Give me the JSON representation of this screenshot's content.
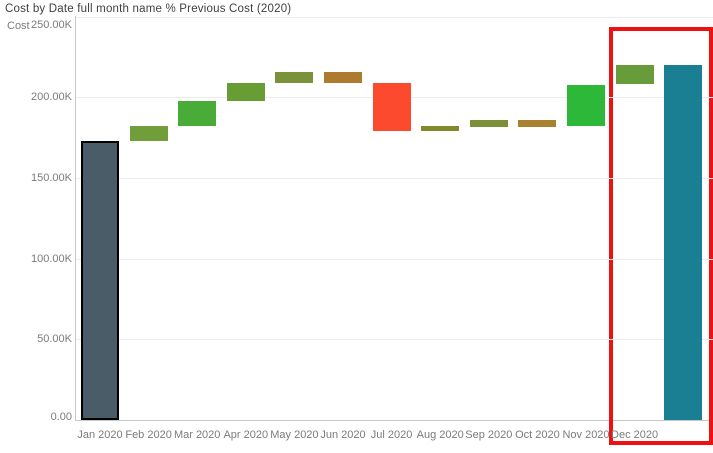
{
  "title": "Cost by Date full month name % Previous Cost (2020)",
  "chart_data": {
    "type": "waterfall",
    "title": "Cost by Date full month name % Previous Cost (2020)",
    "ylabel": "Cost",
    "unit": "K",
    "ylim": [
      0,
      250
    ],
    "grid": true,
    "legend": "none",
    "y_ticks": [
      {
        "value": 0,
        "label": "0.00"
      },
      {
        "value": 50,
        "label": "50.00K"
      },
      {
        "value": 100,
        "label": "100.00K"
      },
      {
        "value": 150,
        "label": "150.00K"
      },
      {
        "value": 200,
        "label": "200.00K"
      },
      {
        "value": 250,
        "label": "250.00K"
      }
    ],
    "categories": [
      "Jan 2020",
      "Feb 2020",
      "Mar 2020",
      "Apr 2020",
      "May 2020",
      "Jun 2020",
      "Jul 2020",
      "Aug 2020",
      "Sep 2020",
      "Oct 2020",
      "Nov 2020",
      "Dec 2020"
    ],
    "cumulative_thousands": [
      173,
      182,
      198,
      209,
      216,
      209,
      179,
      182,
      186,
      182,
      208,
      220
    ],
    "total_thousands": 220,
    "bars": [
      {
        "label": "Jan 2020",
        "kind": "start",
        "start": 0,
        "end": 173,
        "color": "#4a5c68",
        "border": "#000000"
      },
      {
        "label": "Feb 2020",
        "kind": "increase",
        "start": 173,
        "end": 182,
        "color": "#6f9e3a"
      },
      {
        "label": "Mar 2020",
        "kind": "increase",
        "start": 182,
        "end": 198,
        "color": "#4aac38"
      },
      {
        "label": "Apr 2020",
        "kind": "increase",
        "start": 198,
        "end": 209,
        "color": "#689c34"
      },
      {
        "label": "May 2020",
        "kind": "increase",
        "start": 209,
        "end": 216,
        "color": "#7b9338"
      },
      {
        "label": "Jun 2020",
        "kind": "decrease",
        "start": 216,
        "end": 209,
        "color": "#ad7a2e"
      },
      {
        "label": "Jul 2020",
        "kind": "decrease",
        "start": 209,
        "end": 179,
        "color": "#fc4a2e"
      },
      {
        "label": "Aug 2020",
        "kind": "increase",
        "start": 179,
        "end": 182,
        "color": "#84882c"
      },
      {
        "label": "Sep 2020",
        "kind": "increase",
        "start": 182,
        "end": 186,
        "color": "#7b9038"
      },
      {
        "label": "Oct 2020",
        "kind": "decrease",
        "start": 186,
        "end": 182,
        "color": "#a8812f"
      },
      {
        "label": "Nov 2020",
        "kind": "increase",
        "start": 182,
        "end": 208,
        "color": "#2eb83a"
      },
      {
        "label": "Dec 2020",
        "kind": "increase",
        "start": 208,
        "end": 220,
        "color": "#689c3a"
      },
      {
        "label": "",
        "kind": "total",
        "start": 0,
        "end": 220,
        "color": "#1a7f93"
      }
    ],
    "highlight": {
      "target": "Dec 2020 delta and total bar",
      "color": "#ee1111"
    }
  }
}
